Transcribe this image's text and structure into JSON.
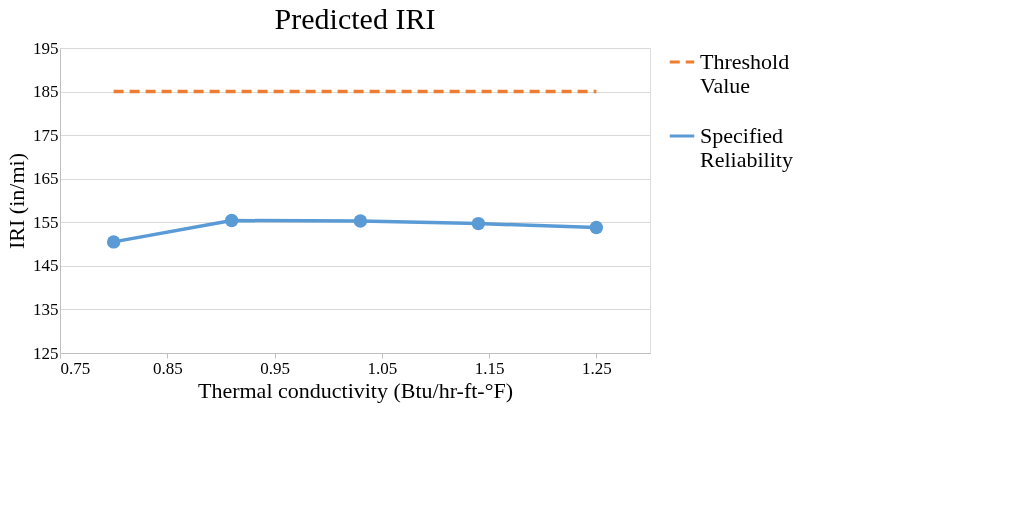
{
  "chart_data": {
    "type": "line",
    "title": "Predicted IRI",
    "xlabel": "Thermal conductivity (Btu/hr-ft-°F)",
    "ylabel": "IRI (in/mi)",
    "xlim": [
      0.75,
      1.3
    ],
    "xticks": [
      0.75,
      0.85,
      0.95,
      1.05,
      1.15,
      1.25
    ],
    "ylim": [
      125,
      195
    ],
    "yticks": [
      125,
      135,
      145,
      155,
      165,
      175,
      185,
      195
    ],
    "grid": "y",
    "legend": "right",
    "series": [
      {
        "name": "Threshold Value",
        "color": "#ed7d31",
        "line_style": "dashed",
        "marker": "none",
        "x": [
          0.8,
          1.25
        ],
        "values": [
          185,
          185
        ]
      },
      {
        "name": "Specified Reliability",
        "color": "#5b9bd5",
        "line_style": "solid",
        "marker": "circle",
        "x": [
          0.8,
          0.91,
          1.03,
          1.14,
          1.25
        ],
        "values": [
          150.5,
          155.4,
          155.3,
          154.7,
          153.8
        ]
      }
    ]
  }
}
